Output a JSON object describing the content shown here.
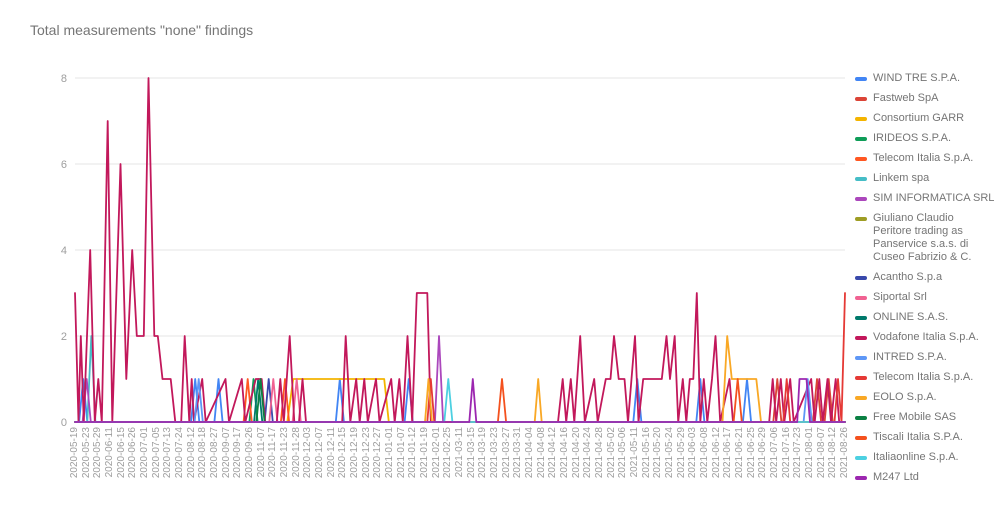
{
  "chart_data": {
    "type": "line",
    "title": "Total measurements \"none\" findings",
    "xlabel": "",
    "ylabel": "",
    "ylim": [
      0,
      8
    ],
    "yticks": [
      0,
      2,
      4,
      6,
      8
    ],
    "grid": true,
    "legend_position": "right",
    "x_labels": [
      "2020-05-19",
      "2020-05-23",
      "2020-05-29",
      "2020-06-11",
      "2020-06-15",
      "2020-06-26",
      "2020-07-01",
      "2020-07-05",
      "2020-07-13",
      "2020-07-24",
      "2020-08-12",
      "2020-08-18",
      "2020-08-27",
      "2020-09-07",
      "2020-09-17",
      "2020-09-26",
      "2020-11-07",
      "2020-11-17",
      "2020-11-23",
      "2020-11-28",
      "2020-12-03",
      "2020-12-07",
      "2020-12-11",
      "2020-12-15",
      "2020-12-19",
      "2020-12-23",
      "2020-12-27",
      "2021-01-01",
      "2021-01-07",
      "2021-01-12",
      "2021-01-19",
      "2021-02-01",
      "2021-02-25",
      "2021-03-11",
      "2021-03-15",
      "2021-03-19",
      "2021-03-23",
      "2021-03-27",
      "2021-03-31",
      "2021-04-04",
      "2021-04-08",
      "2021-04-12",
      "2021-04-16",
      "2021-04-20",
      "2021-04-24",
      "2021-04-28",
      "2021-05-02",
      "2021-05-06",
      "2021-05-11",
      "2021-05-16",
      "2021-05-20",
      "2021-05-24",
      "2021-05-29",
      "2021-06-03",
      "2021-06-08",
      "2021-06-12",
      "2021-06-17",
      "2021-06-21",
      "2021-06-25",
      "2021-06-29",
      "2021-07-06",
      "2021-07-16",
      "2021-07-23",
      "2021-08-01",
      "2021-08-07",
      "2021-08-12",
      "2021-08-26"
    ],
    "series": [
      {
        "name": "WIND TRE S.P.A.",
        "color": "#4285F4",
        "spikes": [
          [
            0.7,
            1
          ],
          [
            10.3,
            1
          ],
          [
            12.3,
            1
          ],
          [
            22.7,
            1
          ],
          [
            28.6,
            1
          ],
          [
            48.2,
            1
          ],
          [
            53.6,
            1
          ],
          [
            57.6,
            1
          ]
        ]
      },
      {
        "name": "Fastweb SpA",
        "color": "#DB4437",
        "spikes": [
          [
            60.2,
            1
          ],
          [
            63.6,
            1
          ],
          [
            64.6,
            1
          ]
        ]
      },
      {
        "name": "Consortium GARR",
        "color": "#F4B400",
        "path": [
          [
            0,
            0
          ],
          [
            18.2,
            0
          ],
          [
            18.7,
            1
          ],
          [
            26.5,
            1
          ],
          [
            26.9,
            0
          ],
          [
            66,
            0
          ]
        ]
      },
      {
        "name": "IRIDEOS S.P.A.",
        "color": "#0F9D58",
        "spikes": [
          [
            15.3,
            1
          ]
        ]
      },
      {
        "name": "Telecom Italia S.p.A.",
        "color": "#FF5722",
        "spikes": [
          [
            14.8,
            1
          ],
          [
            18,
            1
          ]
        ]
      },
      {
        "name": "Linkem spa",
        "color": "#46BDC6",
        "spikes": [
          [
            1.4,
            2
          ]
        ]
      },
      {
        "name": "SIM INFORMATICA SRL",
        "color": "#AB47BC",
        "spikes": [
          [
            1,
            1
          ],
          [
            31.2,
            2
          ]
        ]
      },
      {
        "name": "Giuliano Claudio Peritore trading as Panservice s.a.s. di Cuseo Fabrizio & C.",
        "color": "#9E9D24",
        "spikes": []
      },
      {
        "name": "Acantho S.p.a",
        "color": "#3949AB",
        "spikes": [
          [
            16.6,
            1
          ]
        ]
      },
      {
        "name": "Siportal Srl",
        "color": "#F06292",
        "spikes": [
          [
            17,
            1
          ],
          [
            19,
            1
          ]
        ]
      },
      {
        "name": "ONLINE S.A.S.",
        "color": "#00796B",
        "spikes": [
          [
            15.7,
            1
          ]
        ]
      },
      {
        "name": "Vodafone Italia S.p.A.",
        "color": "#C2185B",
        "path": [
          [
            0,
            3
          ],
          [
            0.3,
            0
          ],
          [
            0.5,
            2
          ],
          [
            0.75,
            0
          ],
          [
            1.3,
            4
          ],
          [
            1.7,
            0
          ],
          [
            2,
            1
          ],
          [
            2.3,
            0
          ],
          [
            2.8,
            7
          ],
          [
            3.2,
            0
          ],
          [
            3.9,
            6
          ],
          [
            4.4,
            1
          ],
          [
            4.9,
            4
          ],
          [
            5.3,
            2
          ],
          [
            5.9,
            2
          ],
          [
            6.3,
            8
          ],
          [
            6.8,
            2
          ],
          [
            7.1,
            2
          ],
          [
            7.5,
            1
          ],
          [
            8.2,
            1
          ],
          [
            8.6,
            0
          ],
          [
            9.1,
            0
          ],
          [
            9.4,
            2
          ],
          [
            9.8,
            0
          ],
          [
            10,
            1
          ],
          [
            10.2,
            0
          ],
          [
            10.9,
            1
          ],
          [
            11.2,
            0
          ],
          [
            12.9,
            1
          ],
          [
            13.2,
            0
          ],
          [
            14.3,
            1
          ],
          [
            14.6,
            0
          ],
          [
            15.5,
            1
          ],
          [
            16,
            1
          ],
          [
            16.3,
            0
          ],
          [
            17.3,
            0
          ],
          [
            17.6,
            1
          ],
          [
            17.9,
            0
          ],
          [
            18.4,
            2
          ],
          [
            18.8,
            0
          ],
          [
            19.2,
            0
          ],
          [
            19.5,
            1
          ],
          [
            19.8,
            0
          ],
          [
            22.9,
            0
          ],
          [
            23.2,
            2
          ],
          [
            23.6,
            0
          ],
          [
            24.1,
            1
          ],
          [
            24.4,
            0
          ],
          [
            24.8,
            1
          ],
          [
            25.1,
            0
          ],
          [
            25.8,
            1
          ],
          [
            26.1,
            0
          ],
          [
            27.1,
            1
          ],
          [
            27.4,
            0
          ],
          [
            27.8,
            1
          ],
          [
            28.1,
            0
          ],
          [
            28.5,
            2
          ],
          [
            28.9,
            0
          ],
          [
            29.3,
            3
          ],
          [
            30.2,
            3
          ],
          [
            30.5,
            0
          ],
          [
            41.4,
            0
          ],
          [
            41.8,
            1
          ],
          [
            42.1,
            0
          ],
          [
            42.5,
            1
          ],
          [
            42.8,
            0
          ],
          [
            43.3,
            2
          ],
          [
            43.7,
            0
          ],
          [
            44.5,
            1
          ],
          [
            44.8,
            0
          ],
          [
            45.5,
            1
          ],
          [
            45.9,
            1
          ],
          [
            46.2,
            2
          ],
          [
            46.6,
            1
          ],
          [
            47.1,
            1
          ],
          [
            47.4,
            0
          ],
          [
            48,
            2
          ],
          [
            48.3,
            0
          ],
          [
            48.7,
            1
          ],
          [
            49.2,
            1
          ],
          [
            50.3,
            1
          ],
          [
            50.7,
            2
          ],
          [
            51,
            1
          ],
          [
            51.4,
            2
          ],
          [
            51.7,
            0
          ],
          [
            52.1,
            1
          ],
          [
            52.4,
            0
          ],
          [
            52.7,
            1
          ],
          [
            53,
            1
          ],
          [
            53.3,
            3
          ],
          [
            53.6,
            0
          ],
          [
            53.9,
            1
          ],
          [
            54.2,
            0
          ],
          [
            54.6,
            1
          ],
          [
            54.9,
            2
          ],
          [
            55.3,
            0
          ],
          [
            56.1,
            1
          ],
          [
            56.4,
            0
          ],
          [
            59.5,
            0
          ],
          [
            59.8,
            1
          ],
          [
            60.1,
            0
          ],
          [
            60.5,
            1
          ],
          [
            60.8,
            0
          ],
          [
            61.3,
            1
          ],
          [
            61.6,
            0
          ],
          [
            63.1,
            1
          ],
          [
            63.4,
            0
          ],
          [
            63.8,
            1
          ],
          [
            64.1,
            0
          ],
          [
            64.5,
            1
          ],
          [
            64.8,
            0
          ],
          [
            65.2,
            1
          ],
          [
            65.5,
            0
          ],
          [
            66,
            0
          ]
        ]
      },
      {
        "name": "INTRED S.P.A.",
        "color": "#5E97F6",
        "spikes": [
          [
            10.6,
            1
          ],
          [
            62.8,
            1
          ]
        ]
      },
      {
        "name": "Telecom Italia S.p.A.",
        "color": "#E53935",
        "path": [
          [
            0,
            0
          ],
          [
            30.2,
            0
          ],
          [
            30.5,
            1
          ],
          [
            30.8,
            0
          ],
          [
            60.7,
            0
          ],
          [
            61,
            1
          ],
          [
            61.3,
            0
          ],
          [
            65.1,
            0
          ],
          [
            65.4,
            1
          ],
          [
            65.7,
            0
          ],
          [
            66,
            3
          ]
        ]
      },
      {
        "name": "EOLO S.p.A.",
        "color": "#F9A825",
        "path": [
          [
            0,
            0
          ],
          [
            30,
            0
          ],
          [
            30.3,
            1
          ],
          [
            30.6,
            0
          ],
          [
            39.4,
            0
          ],
          [
            39.7,
            1
          ],
          [
            40,
            0
          ],
          [
            55.5,
            0
          ],
          [
            55.9,
            2
          ],
          [
            56.3,
            1
          ],
          [
            58.4,
            1
          ],
          [
            58.8,
            0
          ],
          [
            66,
            0
          ]
        ]
      },
      {
        "name": "Free Mobile SAS",
        "color": "#0B8043",
        "spikes": [
          [
            15.9,
            1
          ]
        ]
      },
      {
        "name": "Tiscali Italia S.P.A.",
        "color": "#F4511E",
        "spikes": [
          [
            36.6,
            1
          ],
          [
            56.8,
            1
          ]
        ]
      },
      {
        "name": "Italiaonline S.p.A.",
        "color": "#4DD0E1",
        "spikes": [
          [
            32,
            1
          ]
        ]
      },
      {
        "name": "M247 Ltd",
        "color": "#9C27B0",
        "path": [
          [
            0,
            0
          ],
          [
            33.8,
            0
          ],
          [
            34.1,
            1
          ],
          [
            34.4,
            0
          ],
          [
            61.9,
            0
          ],
          [
            62.1,
            1
          ],
          [
            62.7,
            1
          ],
          [
            63,
            0
          ],
          [
            66,
            0
          ]
        ]
      }
    ],
    "style": {
      "grid_color": "#e6e6e6",
      "tick_label_color": "#9e9e9e",
      "title_color": "#757575",
      "legend_text_color": "#757575"
    }
  }
}
